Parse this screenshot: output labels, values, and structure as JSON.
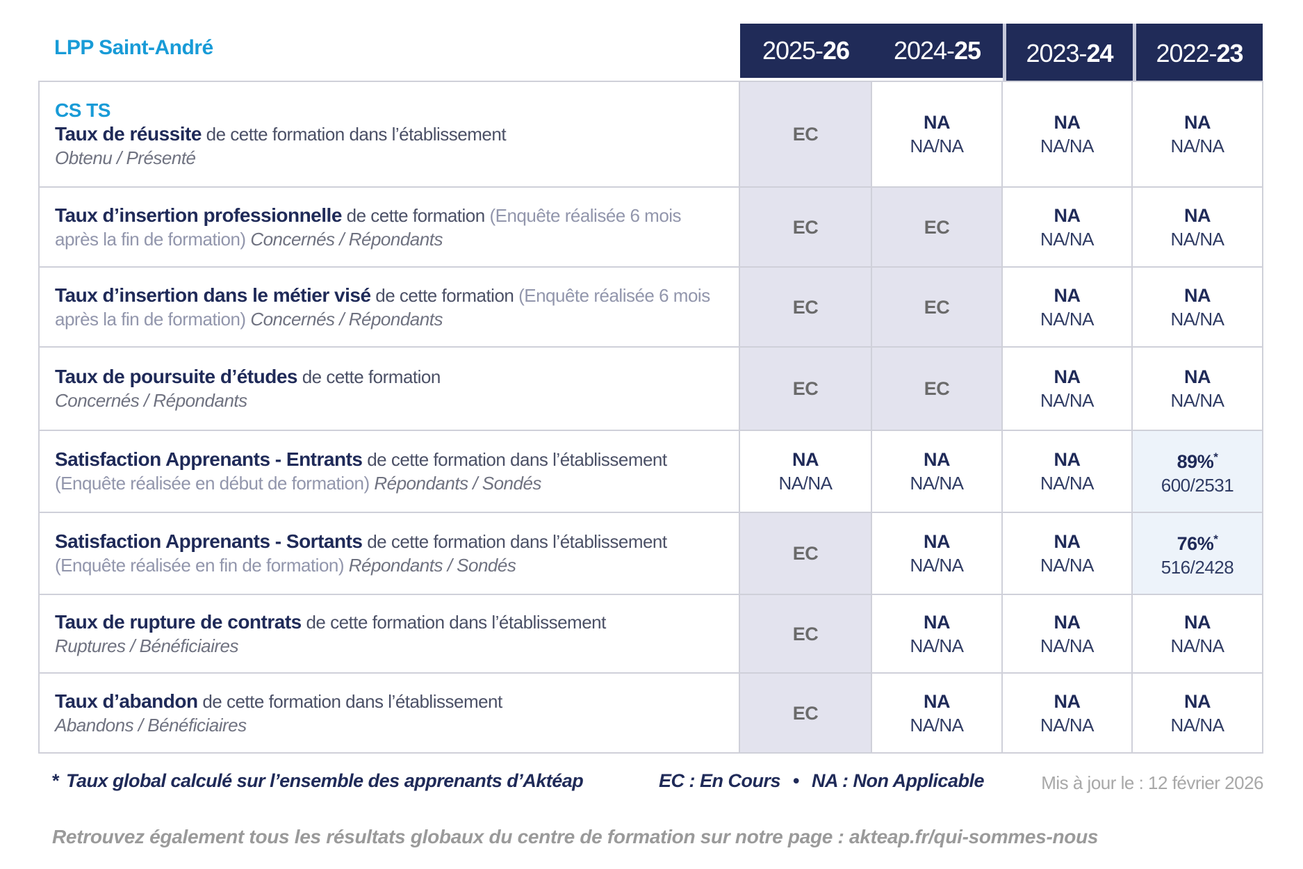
{
  "header": {
    "title": "LPP Saint-André",
    "years": [
      {
        "start": "2025-",
        "bold": "26"
      },
      {
        "start": "2024-",
        "bold": "25"
      },
      {
        "start": "2023-",
        "bold": "24"
      },
      {
        "start": "2022-",
        "bold": "23"
      }
    ]
  },
  "colors": {
    "navy": "#1f2a58",
    "brand_blue": "#189bd7",
    "cell_lavender": "#e3e3ee",
    "cell_light_blue": "#edf3fa",
    "border": "#cfd0d9",
    "ec_gray": "#6a6a6a"
  },
  "table": {
    "rows": [
      {
        "segments": [
          {
            "s": "heading",
            "t": "CS TS"
          },
          {
            "s": "br"
          },
          {
            "s": "bold",
            "t": "Taux de réussite"
          },
          {
            "s": "plain",
            "t": " de cette formation dans l’établissement"
          },
          {
            "s": "br"
          },
          {
            "s": "italic",
            "t": "Obtenu / Présenté"
          }
        ],
        "cells": [
          {
            "v": "EC",
            "bg": "lav"
          },
          {
            "v": "NA",
            "sub": "NA/NA"
          },
          {
            "v": "NA",
            "sub": "NA/NA"
          },
          {
            "v": "NA",
            "sub": "NA/NA"
          }
        ]
      },
      {
        "segments": [
          {
            "s": "bold",
            "t": "Taux d’insertion professionnelle"
          },
          {
            "s": "plain",
            "t": " de cette formation "
          },
          {
            "s": "paren",
            "t": "(Enquête réalisée 6 mois après la fin de formation) "
          },
          {
            "s": "italic",
            "t": "Concernés / Répondants"
          }
        ],
        "cells": [
          {
            "v": "EC",
            "bg": "lav"
          },
          {
            "v": "EC",
            "bg": "lav"
          },
          {
            "v": "NA",
            "sub": "NA/NA"
          },
          {
            "v": "NA",
            "sub": "NA/NA"
          }
        ]
      },
      {
        "segments": [
          {
            "s": "bold",
            "t": "Taux d’insertion dans le métier visé"
          },
          {
            "s": "plain",
            "t": " de cette formation "
          },
          {
            "s": "paren",
            "t": "(Enquête réalisée 6 mois après la fin de formation) "
          },
          {
            "s": "italic",
            "t": "Concernés / Répondants"
          }
        ],
        "cells": [
          {
            "v": "EC",
            "bg": "lav"
          },
          {
            "v": "EC",
            "bg": "lav"
          },
          {
            "v": "NA",
            "sub": "NA/NA"
          },
          {
            "v": "NA",
            "sub": "NA/NA"
          }
        ]
      },
      {
        "segments": [
          {
            "s": "bold",
            "t": "Taux de poursuite d’études"
          },
          {
            "s": "plain",
            "t": " de cette formation"
          },
          {
            "s": "br"
          },
          {
            "s": "italic",
            "t": "Concernés / Répondants"
          }
        ],
        "cells": [
          {
            "v": "EC",
            "bg": "lav"
          },
          {
            "v": "EC",
            "bg": "lav"
          },
          {
            "v": "NA",
            "sub": "NA/NA"
          },
          {
            "v": "NA",
            "sub": "NA/NA"
          }
        ]
      },
      {
        "segments": [
          {
            "s": "bold",
            "t": "Satisfaction Apprenants - Entrants"
          },
          {
            "s": "plain",
            "t": " de cette formation dans l’établissement "
          },
          {
            "s": "paren",
            "t": "(Enquête réalisée en début de formation) "
          },
          {
            "s": "italic",
            "t": "Répondants / Sondés"
          }
        ],
        "cells": [
          {
            "v": "NA",
            "sub": "NA/NA"
          },
          {
            "v": "NA",
            "sub": "NA/NA"
          },
          {
            "v": "NA",
            "sub": "NA/NA"
          },
          {
            "v": "89%",
            "star": "*",
            "sub": "600/2531",
            "bg": "blue"
          }
        ]
      },
      {
        "segments": [
          {
            "s": "bold",
            "t": "Satisfaction Apprenants - Sortants"
          },
          {
            "s": "plain",
            "t": " de cette formation dans l’établissement "
          },
          {
            "s": "paren",
            "t": "(Enquête réalisée en fin de formation) "
          },
          {
            "s": "italic",
            "t": "Répondants / Sondés"
          }
        ],
        "cells": [
          {
            "v": "EC",
            "bg": "lav"
          },
          {
            "v": "NA",
            "sub": "NA/NA"
          },
          {
            "v": "NA",
            "sub": "NA/NA"
          },
          {
            "v": "76%",
            "star": "*",
            "sub": "516/2428",
            "bg": "blue"
          }
        ]
      },
      {
        "segments": [
          {
            "s": "bold",
            "t": "Taux de rupture de contrats"
          },
          {
            "s": "plain",
            "t": " de cette formation dans l’établissement"
          },
          {
            "s": "br"
          },
          {
            "s": "italic",
            "t": "Ruptures / Bénéficiaires"
          }
        ],
        "cells": [
          {
            "v": "EC",
            "bg": "lav"
          },
          {
            "v": "NA",
            "sub": "NA/NA"
          },
          {
            "v": "NA",
            "sub": "NA/NA"
          },
          {
            "v": "NA",
            "sub": "NA/NA"
          }
        ]
      },
      {
        "segments": [
          {
            "s": "bold",
            "t": "Taux d’abandon"
          },
          {
            "s": "plain",
            "t": " de cette formation dans l’établissement"
          },
          {
            "s": "br"
          },
          {
            "s": "italic",
            "t": "Abandons / Bénéficiaires"
          }
        ],
        "cells": [
          {
            "v": "EC",
            "bg": "lav"
          },
          {
            "v": "NA",
            "sub": "NA/NA"
          },
          {
            "v": "NA",
            "sub": "NA/NA"
          },
          {
            "v": "NA",
            "sub": "NA/NA"
          }
        ]
      }
    ]
  },
  "footnote": {
    "star": "*",
    "text": "Taux global calculé sur l’ensemble des apprenants d’Aktéap",
    "updated": "Mis à jour le : 12 février 2026"
  },
  "legend": {
    "ec": "EC : En Cours",
    "bullet": "•",
    "na": "NA : Non Applicable"
  },
  "bottom_note": "Retrouvez également tous les résultats globaux du centre de formation sur notre page : akteap.fr/qui-sommes-nous"
}
